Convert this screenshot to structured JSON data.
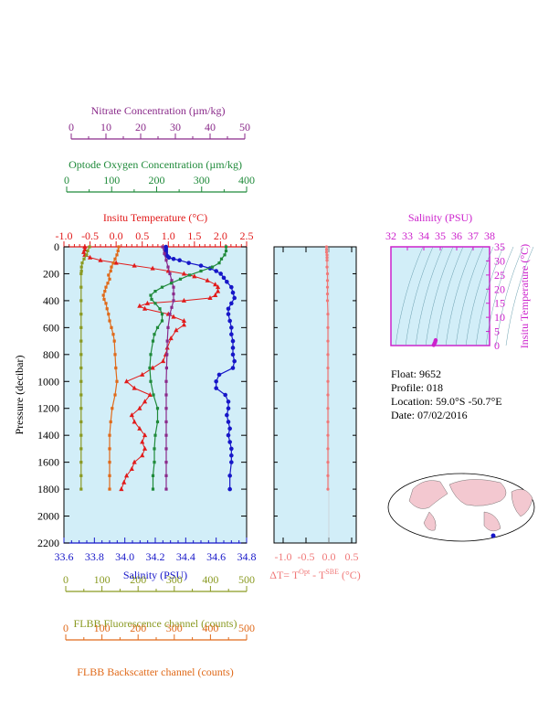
{
  "axes": {
    "nitrate": {
      "label": "Nitrate Concentration (µm/kg)",
      "ticks": [
        "0",
        "10",
        "20",
        "30",
        "40",
        "50"
      ],
      "color": "#8a2a8a"
    },
    "oxygen": {
      "label": "Optode Oxygen Concentration (µm/kg)",
      "ticks": [
        "0",
        "100",
        "200",
        "300",
        "400"
      ],
      "color": "#1f8a3a"
    },
    "temperature": {
      "label": "Insitu Temperature (°C)",
      "ticks": [
        "-1.0",
        "-0.5",
        "0.0",
        "0.5",
        "1.0",
        "1.5",
        "2.0",
        "2.5"
      ],
      "color": "#e11b1b"
    },
    "pressure": {
      "label": "Pressure (decibar)",
      "ticks": [
        "0",
        "200",
        "400",
        "600",
        "800",
        "1000",
        "1200",
        "1400",
        "1600",
        "1800",
        "2000",
        "2200"
      ]
    },
    "salinity": {
      "label": "Salinity (PSU)",
      "ticks": [
        "33.6",
        "33.8",
        "34.0",
        "34.2",
        "34.4",
        "34.6",
        "34.8"
      ],
      "color": "#1616c8"
    },
    "delta_t": {
      "label_main": "ΔT= T",
      "sup1": "Opt",
      "label_mid": " - T",
      "sup2": "SBE",
      "label_end": " (°C)",
      "ticks": [
        "-1.0",
        "-0.5",
        "0.0",
        "0.5"
      ],
      "color": "#f07878"
    },
    "fluorescence": {
      "label": "FLBB Fluorescence channel (counts)",
      "ticks": [
        "0",
        "100",
        "200",
        "300",
        "400",
        "500"
      ],
      "color": "#8a9a22"
    },
    "backscatter": {
      "label": "FLBB Backscatter channel (counts)",
      "ticks": [
        "0",
        "100",
        "200",
        "300",
        "400",
        "500"
      ],
      "color": "#e06a1a"
    },
    "ts_salinity": {
      "label": "Salinity (PSU)",
      "ticks": [
        "32",
        "33",
        "34",
        "35",
        "36",
        "37",
        "38"
      ],
      "color": "#cc22cc"
    },
    "ts_temperature": {
      "label": "Insitu Temperature (°C)",
      "ticks": [
        "0",
        "5",
        "10",
        "15",
        "20",
        "25",
        "30",
        "35"
      ],
      "color": "#cc22cc"
    }
  },
  "info": {
    "float": "Float:  9652",
    "profile": "Profile:  018",
    "location": "Location:  59.0°S  -50.7°E",
    "date": "Date:  07/02/2016"
  },
  "colors": {
    "panel_bg": "#d2eef8",
    "axis": "#000000",
    "map_land": "#f3c8d0"
  },
  "chart_data": {
    "type": "line",
    "y_axis": {
      "label": "Pressure (decibar)",
      "range": [
        2200,
        0
      ]
    },
    "series": [
      {
        "name": "Salinity",
        "color": "#1616c8",
        "x_range": [
          33.6,
          34.8
        ],
        "pressure": [
          0,
          10,
          20,
          30,
          40,
          50,
          60,
          70,
          80,
          90,
          100,
          120,
          140,
          160,
          180,
          200,
          230,
          260,
          300,
          340,
          380,
          420,
          460,
          500,
          550,
          600,
          650,
          700,
          750,
          800,
          850,
          900,
          950,
          1000,
          1050,
          1100,
          1150,
          1200,
          1250,
          1300,
          1350,
          1400,
          1450,
          1500,
          1550,
          1600,
          1700,
          1800
        ],
        "values": [
          34.27,
          34.27,
          34.27,
          34.27,
          34.27,
          34.27,
          34.27,
          34.28,
          34.29,
          34.32,
          34.36,
          34.42,
          34.5,
          34.56,
          34.6,
          34.63,
          34.65,
          34.67,
          34.7,
          34.71,
          34.72,
          34.7,
          34.68,
          34.68,
          34.69,
          34.7,
          34.7,
          34.71,
          34.71,
          34.71,
          34.72,
          34.71,
          34.62,
          34.6,
          34.6,
          34.66,
          34.68,
          34.68,
          34.67,
          34.68,
          34.69,
          34.68,
          34.69,
          34.7,
          34.7,
          34.7,
          34.69,
          34.69
        ]
      },
      {
        "name": "Temperature",
        "color": "#e11b1b",
        "x_range": [
          -1.0,
          2.5
        ],
        "pressure": [
          0,
          20,
          40,
          60,
          80,
          100,
          120,
          140,
          160,
          180,
          200,
          220,
          250,
          280,
          300,
          330,
          360,
          380,
          400,
          420,
          440,
          460,
          500,
          520,
          550,
          580,
          620,
          680,
          750,
          800,
          850,
          900,
          950,
          1000,
          1050,
          1100,
          1150,
          1200,
          1250,
          1300,
          1350,
          1400,
          1450,
          1500,
          1550,
          1600,
          1650,
          1700,
          1750,
          1800
        ],
        "values": [
          -0.6,
          -0.6,
          -0.62,
          -0.6,
          -0.5,
          -0.3,
          0.0,
          0.35,
          0.7,
          1.0,
          1.3,
          1.5,
          1.75,
          1.9,
          1.95,
          1.95,
          1.9,
          1.8,
          1.3,
          0.6,
          0.45,
          0.55,
          1.0,
          1.1,
          1.3,
          1.3,
          1.15,
          1.05,
          0.98,
          0.95,
          0.9,
          0.7,
          0.5,
          0.2,
          0.35,
          0.65,
          0.55,
          0.45,
          0.3,
          0.35,
          0.45,
          0.55,
          0.5,
          0.55,
          0.5,
          0.35,
          0.3,
          0.2,
          0.15,
          0.1
        ]
      },
      {
        "name": "Nitrate",
        "color": "#8a2a8a",
        "x_range": [
          0,
          50
        ],
        "pressure": [
          0,
          50,
          100,
          150,
          200,
          250,
          300,
          350,
          400,
          450,
          500,
          600,
          700,
          800,
          900,
          1000,
          1100,
          1200,
          1300,
          1400,
          1500,
          1600,
          1700,
          1800
        ],
        "values": [
          27,
          27.5,
          28,
          28.5,
          29,
          29.5,
          30,
          30,
          30,
          29.5,
          29,
          28.5,
          28.3,
          28.2,
          28.1,
          28,
          28,
          28,
          28,
          28,
          28,
          28,
          28,
          28
        ]
      },
      {
        "name": "Oxygen",
        "color": "#1f8a3a",
        "x_range": [
          0,
          400
        ],
        "pressure": [
          0,
          30,
          60,
          90,
          120,
          150,
          180,
          210,
          240,
          270,
          300,
          330,
          360,
          390,
          420,
          460,
          500,
          550,
          600,
          650,
          700,
          800,
          900,
          1000,
          1100,
          1200,
          1300,
          1400,
          1500,
          1600,
          1700,
          1800
        ],
        "values": [
          355,
          355,
          352,
          345,
          340,
          325,
          300,
          275,
          255,
          235,
          215,
          200,
          190,
          192,
          200,
          210,
          215,
          215,
          205,
          198,
          195,
          190,
          188,
          190,
          196,
          205,
          205,
          200,
          198,
          198,
          195,
          195
        ]
      },
      {
        "name": "Fluorescence",
        "color": "#8a9a22",
        "x_range": [
          0,
          500
        ],
        "pressure": [
          0,
          30,
          60,
          90,
          120,
          150,
          180,
          200,
          300,
          400,
          500,
          600,
          700,
          800,
          900,
          1000,
          1100,
          1200,
          1300,
          1400,
          1500,
          1600,
          1700,
          1800
        ],
        "values": [
          70,
          65,
          62,
          55,
          50,
          48,
          48,
          47,
          47,
          47,
          47,
          47,
          47,
          47,
          47,
          47,
          47,
          47,
          47,
          47,
          47,
          47,
          47,
          47
        ]
      },
      {
        "name": "Backscatter",
        "color": "#e06a1a",
        "x_range": [
          0,
          500
        ],
        "pressure": [
          0,
          30,
          60,
          90,
          120,
          150,
          180,
          210,
          240,
          270,
          300,
          330,
          360,
          390,
          420,
          460,
          500,
          550,
          600,
          650,
          700,
          800,
          900,
          1000,
          1100,
          1200,
          1300,
          1400,
          1500,
          1600,
          1700,
          1800
        ],
        "values": [
          150,
          148,
          145,
          140,
          135,
          130,
          128,
          122,
          125,
          120,
          115,
          112,
          108,
          110,
          115,
          118,
          122,
          125,
          130,
          135,
          138,
          140,
          142,
          145,
          140,
          132,
          128,
          125,
          125,
          125,
          125,
          125
        ]
      },
      {
        "name": "Delta T",
        "color": "#f07878",
        "x_range": [
          -1.2,
          0.6
        ],
        "pressure": [
          0,
          20,
          40,
          60,
          80,
          100,
          150,
          200,
          250,
          300,
          350,
          400,
          500,
          600,
          700,
          800,
          900,
          1000,
          1100,
          1200,
          1300,
          1400,
          1500,
          1600,
          1700,
          1800
        ],
        "values": [
          -0.05,
          -0.05,
          -0.05,
          -0.04,
          -0.04,
          -0.04,
          -0.04,
          -0.03,
          -0.03,
          -0.03,
          -0.03,
          -0.03,
          -0.02,
          -0.02,
          -0.02,
          -0.02,
          -0.02,
          -0.02,
          -0.02,
          -0.02,
          -0.02,
          -0.02,
          -0.02,
          -0.02,
          -0.02,
          -0.02
        ]
      }
    ],
    "ts_diagram": {
      "x_range": [
        32,
        38
      ],
      "y_range": [
        0,
        35
      ],
      "points_salinity": [
        34.6,
        34.65,
        34.7,
        34.72,
        34.68
      ],
      "points_temperature": [
        0.2,
        0.8,
        1.5,
        1.9,
        1.0
      ]
    }
  }
}
